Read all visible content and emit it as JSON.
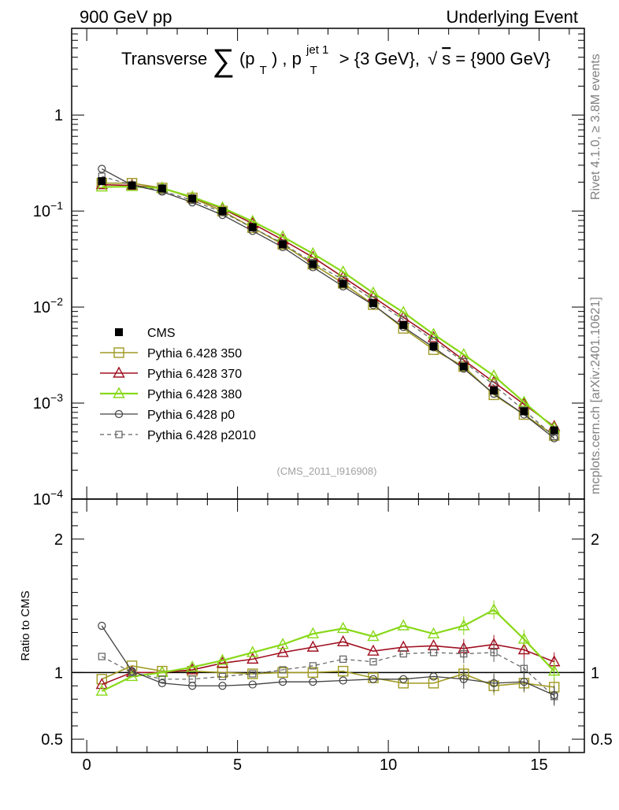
{
  "header": {
    "left_label": "900 GeV pp",
    "right_label": "Underlying Event"
  },
  "side_labels": {
    "rivet": "Rivet 4.1.0, ≥ 3.8M events",
    "mcplots": "mcplots.cern.ch [arXiv:2401.10621]"
  },
  "colors": {
    "CMS": "#000000",
    "p350": "#a09a22",
    "p370": "#a01020",
    "p380": "#88d818",
    "p0": "#404040",
    "p2010": "#606060"
  },
  "chart_data": [
    {
      "type": "line",
      "panel": "main",
      "title": "Transverse ∑(pT), pTjet 1 > {3 GeV}, √s = {900 GeV}",
      "title_parts": {
        "t1": "Transverse",
        "sum": "∑",
        "t2": "(p",
        "t3": ")",
        "sub": "T",
        "t4": ", p",
        "sup": "jet 1",
        "sub2": "T",
        "t5": " > {3 GeV},",
        "rad": "√",
        "s": "s",
        "t6": " = {900 GeV}"
      },
      "watermark": "(CMS_2011_I916908)",
      "yscale": "log",
      "xlim": [
        -0.5,
        16.5
      ],
      "ylim": [
        0.0001,
        8
      ],
      "xlabel": "",
      "ylabel": "",
      "y_ticks": [
        {
          "v": 1,
          "base": "1",
          "exp": ""
        },
        {
          "v": 0.1,
          "base": "10",
          "exp": "−1"
        },
        {
          "v": 0.01,
          "base": "10",
          "exp": "−2"
        },
        {
          "v": 0.001,
          "base": "10",
          "exp": "−3"
        },
        {
          "v": 0.0001,
          "base": "10",
          "exp": "−4"
        }
      ],
      "legend_position": "bottom-left",
      "x": [
        0.5,
        1.5,
        2.5,
        3.5,
        4.5,
        5.5,
        6.5,
        7.5,
        8.5,
        9.5,
        10.5,
        11.5,
        12.5,
        13.5,
        14.5,
        15.5
      ],
      "series": [
        {
          "key": "CMS",
          "name": "CMS",
          "marker": "filled-square",
          "line": "none",
          "values": [
            0.205,
            0.185,
            0.172,
            0.135,
            0.1,
            0.068,
            0.045,
            0.028,
            0.0175,
            0.011,
            0.0065,
            0.0039,
            0.0024,
            0.00135,
            0.00082,
            0.00052
          ]
        },
        {
          "key": "p350",
          "name": "Pythia 6.428 350",
          "marker": "open-square",
          "line": "solid",
          "values": [
            0.195,
            0.195,
            0.174,
            0.137,
            0.1,
            0.067,
            0.045,
            0.028,
            0.0177,
            0.0106,
            0.006,
            0.0036,
            0.0024,
            0.00122,
            0.00076,
            0.00046
          ]
        },
        {
          "key": "p370",
          "name": "Pythia 6.428 370",
          "marker": "open-triangle",
          "line": "solid",
          "values": [
            0.188,
            0.185,
            0.173,
            0.138,
            0.106,
            0.074,
            0.05,
            0.033,
            0.0205,
            0.0127,
            0.0078,
            0.0048,
            0.0028,
            0.00165,
            0.00097,
            0.00057
          ]
        },
        {
          "key": "p380",
          "name": "Pythia 6.428 380",
          "marker": "open-triangle",
          "line": "solid",
          "values": [
            0.178,
            0.18,
            0.173,
            0.14,
            0.108,
            0.078,
            0.054,
            0.036,
            0.0232,
            0.014,
            0.0088,
            0.0052,
            0.0032,
            0.00192,
            0.00102,
            0.00055
          ]
        },
        {
          "key": "p0",
          "name": "Pythia 6.428 p0",
          "marker": "open-circle",
          "line": "solid",
          "values": [
            0.275,
            0.186,
            0.159,
            0.123,
            0.091,
            0.062,
            0.042,
            0.026,
            0.0164,
            0.0105,
            0.0062,
            0.0038,
            0.00228,
            0.00125,
            0.00076,
            0.00043
          ]
        },
        {
          "key": "p2010",
          "name": "Pythia 6.428 p2010",
          "marker": "open-square-small",
          "line": "dashed",
          "values": [
            0.23,
            0.186,
            0.163,
            0.129,
            0.097,
            0.067,
            0.046,
            0.029,
            0.0192,
            0.0119,
            0.0074,
            0.0045,
            0.0027,
            0.00154,
            0.00084,
            0.00045
          ]
        }
      ]
    },
    {
      "type": "line",
      "panel": "ratio",
      "ylabel": "Ratio to CMS",
      "xlim": [
        -0.5,
        16.5
      ],
      "ylim": [
        0.4,
        2.3
      ],
      "y_ticks": [
        {
          "v": 0.5,
          "label": "0.5"
        },
        {
          "v": 1,
          "label": "1"
        },
        {
          "v": 2,
          "label": "2"
        }
      ],
      "x_ticks": [
        {
          "v": 0,
          "label": "0"
        },
        {
          "v": 5,
          "label": "5"
        },
        {
          "v": 10,
          "label": "10"
        },
        {
          "v": 15,
          "label": "15"
        }
      ],
      "reference": 1,
      "x": [
        0.5,
        1.5,
        2.5,
        3.5,
        4.5,
        5.5,
        6.5,
        7.5,
        8.5,
        9.5,
        10.5,
        11.5,
        12.5,
        13.5,
        14.5,
        15.5
      ],
      "series": [
        {
          "key": "p350",
          "values": [
            0.95,
            1.05,
            1.01,
            1.01,
            1.0,
            0.99,
            1.0,
            1.0,
            1.01,
            0.96,
            0.92,
            0.92,
            0.99,
            0.9,
            0.92,
            0.89
          ]
        },
        {
          "key": "p370",
          "values": [
            0.91,
            1.0,
            1.0,
            1.02,
            1.07,
            1.1,
            1.15,
            1.19,
            1.23,
            1.16,
            1.19,
            1.2,
            1.18,
            1.21,
            1.17,
            1.08
          ]
        },
        {
          "key": "p380",
          "values": [
            0.86,
            0.97,
            1.0,
            1.04,
            1.09,
            1.15,
            1.21,
            1.29,
            1.33,
            1.27,
            1.35,
            1.29,
            1.35,
            1.47,
            1.25,
            1.01
          ]
        },
        {
          "key": "p0",
          "values": [
            1.35,
            1.01,
            0.92,
            0.9,
            0.9,
            0.91,
            0.93,
            0.93,
            0.94,
            0.95,
            0.95,
            0.97,
            0.95,
            0.92,
            0.93,
            0.83
          ]
        },
        {
          "key": "p2010",
          "values": [
            1.12,
            1.0,
            0.95,
            0.95,
            0.97,
            0.99,
            1.02,
            1.05,
            1.1,
            1.08,
            1.14,
            1.15,
            1.14,
            1.15,
            1.03,
            0.82
          ]
        }
      ]
    }
  ]
}
